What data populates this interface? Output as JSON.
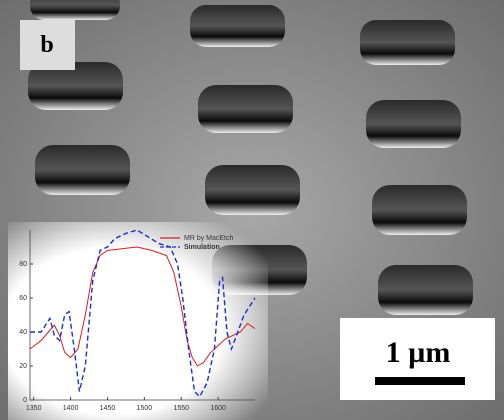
{
  "panel_label": "b",
  "scale_bar": "1 µm",
  "chart_data": {
    "type": "line",
    "xlim": [
      1345,
      1650
    ],
    "ylim": [
      0,
      100
    ],
    "xticks": [
      1350,
      1400,
      1450,
      1500,
      1550,
      1600
    ],
    "yticks": [
      0,
      20,
      40,
      60,
      80
    ],
    "legend": "upper right",
    "series": [
      {
        "name": "MR by MacEtch",
        "color": "#d42020",
        "dash": false,
        "x": [
          1345,
          1360,
          1370,
          1378,
          1385,
          1392,
          1400,
          1410,
          1420,
          1430,
          1440,
          1450,
          1470,
          1490,
          1510,
          1530,
          1540,
          1550,
          1558,
          1565,
          1572,
          1580,
          1590,
          1600,
          1610,
          1620,
          1630,
          1640,
          1650
        ],
        "values": [
          30,
          35,
          40,
          44,
          38,
          28,
          25,
          30,
          50,
          75,
          85,
          88,
          89,
          90,
          88,
          85,
          75,
          55,
          35,
          25,
          20,
          22,
          28,
          32,
          36,
          38,
          40,
          45,
          42
        ]
      },
      {
        "name": "Simulation",
        "color": "#1a2fd0",
        "dash": true,
        "x": [
          1345,
          1360,
          1372,
          1378,
          1385,
          1392,
          1398,
          1405,
          1412,
          1420,
          1430,
          1440,
          1450,
          1460,
          1475,
          1490,
          1505,
          1520,
          1535,
          1545,
          1552,
          1560,
          1568,
          1575,
          1585,
          1595,
          1602,
          1606,
          1612,
          1618,
          1625,
          1635,
          1650
        ],
        "values": [
          40,
          40,
          48,
          38,
          35,
          50,
          52,
          30,
          5,
          20,
          70,
          88,
          90,
          95,
          98,
          100,
          96,
          92,
          90,
          80,
          60,
          30,
          5,
          2,
          10,
          30,
          70,
          72,
          40,
          30,
          38,
          50,
          60
        ]
      }
    ]
  }
}
